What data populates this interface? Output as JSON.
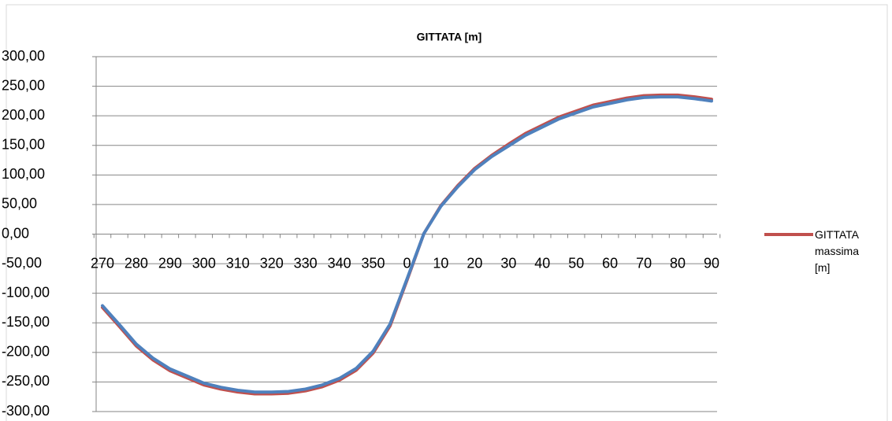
{
  "chart_data": {
    "type": "line",
    "title": "GITTATA [m]",
    "categories": [
      "270",
      null,
      "280",
      null,
      "290",
      null,
      "300",
      null,
      "310",
      null,
      "320",
      null,
      "330",
      null,
      "340",
      null,
      "350",
      null,
      "0",
      null,
      "10",
      null,
      "20",
      null,
      "30",
      null,
      "40",
      null,
      "50",
      null,
      "60",
      null,
      "70",
      null,
      "80",
      null,
      "90"
    ],
    "series": [
      {
        "name": "GITTATA massima [m]",
        "color": "#c0504d",
        "values": [
          -124,
          -156,
          -189,
          -213,
          -231,
          -243,
          -255,
          -262,
          -267,
          -270,
          -270,
          -269,
          -265,
          -258,
          -247,
          -230,
          -201,
          -155,
          -78,
          1,
          48,
          82,
          111,
          133,
          152,
          170,
          184,
          198,
          208,
          218,
          224,
          230,
          234,
          235,
          235,
          232,
          228
        ]
      },
      {
        "color": "#4f81bd",
        "values": [
          -121,
          -153,
          -186,
          -210,
          -228,
          -240,
          -252,
          -259,
          -264,
          -267,
          -267,
          -266,
          -262,
          -255,
          -244,
          -227,
          -198,
          -152,
          -76,
          1,
          47,
          80,
          109,
          131,
          149,
          167,
          181,
          195,
          205,
          215,
          221,
          227,
          231,
          232,
          232,
          229,
          225
        ]
      }
    ],
    "ylim": [
      -300,
      300
    ],
    "yticks": [
      {
        "value": -300,
        "label": "-300,00"
      },
      {
        "value": -250,
        "label": "-250,00"
      },
      {
        "value": -200,
        "label": "-200,00"
      },
      {
        "value": -150,
        "label": "-150,00"
      },
      {
        "value": -100,
        "label": "-100,00"
      },
      {
        "value": -50,
        "label": "-50,00"
      },
      {
        "value": 0,
        "label": "0,00"
      },
      {
        "value": 50,
        "label": "50,00"
      },
      {
        "value": 100,
        "label": "100,00"
      },
      {
        "value": 150,
        "label": "150,00"
      },
      {
        "value": 200,
        "label": "200,00"
      },
      {
        "value": 250,
        "label": "250,00"
      },
      {
        "value": 300,
        "label": "300,00"
      }
    ],
    "grid": true,
    "legend": "right"
  }
}
